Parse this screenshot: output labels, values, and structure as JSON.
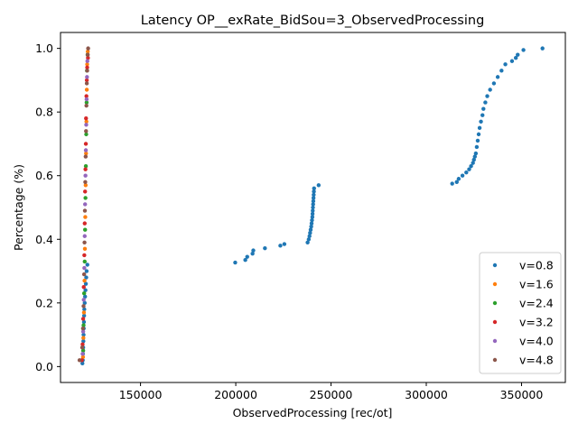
{
  "chart_data": {
    "type": "scatter",
    "title": "Latency OP__exRate_BidSou=3_ObservedProcessing",
    "xlabel": "ObservedProcessing [rec/ot]",
    "ylabel": "Percentage (%)",
    "xlim": [
      108000,
      373000
    ],
    "ylim": [
      -0.05,
      1.05
    ],
    "xticks": [
      150000,
      200000,
      250000,
      300000,
      350000
    ],
    "xtick_labels": [
      "150000",
      "200000",
      "250000",
      "300000",
      "350000"
    ],
    "yticks": [
      0.0,
      0.2,
      0.4,
      0.6,
      0.8,
      1.0
    ],
    "ytick_labels": [
      "0.0",
      "0.2",
      "0.4",
      "0.6",
      "0.8",
      "1.0"
    ],
    "grid": false,
    "legend_position": "lower-right",
    "series": [
      {
        "name": "v=0.8",
        "color": "#1f77b4",
        "points": [
          [
            119500,
            0.01
          ],
          [
            119700,
            0.02
          ],
          [
            119800,
            0.04
          ],
          [
            119900,
            0.06
          ],
          [
            120000,
            0.08
          ],
          [
            120100,
            0.1
          ],
          [
            120200,
            0.12
          ],
          [
            120300,
            0.14
          ],
          [
            120400,
            0.16
          ],
          [
            120500,
            0.18
          ],
          [
            120700,
            0.2
          ],
          [
            120900,
            0.22
          ],
          [
            121100,
            0.24
          ],
          [
            121300,
            0.26
          ],
          [
            121500,
            0.28
          ],
          [
            121700,
            0.3
          ],
          [
            122100,
            0.32
          ],
          [
            199700,
            0.327
          ],
          [
            205000,
            0.335
          ],
          [
            206000,
            0.345
          ],
          [
            208800,
            0.355
          ],
          [
            209200,
            0.365
          ],
          [
            215300,
            0.372
          ],
          [
            223400,
            0.38
          ],
          [
            225500,
            0.385
          ],
          [
            237700,
            0.39
          ],
          [
            238300,
            0.4
          ],
          [
            238700,
            0.41
          ],
          [
            239000,
            0.42
          ],
          [
            239300,
            0.43
          ],
          [
            239600,
            0.44
          ],
          [
            239800,
            0.45
          ],
          [
            240000,
            0.46
          ],
          [
            240200,
            0.47
          ],
          [
            240300,
            0.48
          ],
          [
            240400,
            0.49
          ],
          [
            240500,
            0.5
          ],
          [
            240600,
            0.51
          ],
          [
            240700,
            0.52
          ],
          [
            240800,
            0.53
          ],
          [
            240900,
            0.54
          ],
          [
            241000,
            0.55
          ],
          [
            241100,
            0.56
          ],
          [
            243500,
            0.57
          ],
          [
            313600,
            0.575
          ],
          [
            316000,
            0.58
          ],
          [
            317000,
            0.59
          ],
          [
            319000,
            0.6
          ],
          [
            321000,
            0.61
          ],
          [
            322500,
            0.62
          ],
          [
            323500,
            0.63
          ],
          [
            324500,
            0.64
          ],
          [
            325000,
            0.65
          ],
          [
            325500,
            0.66
          ],
          [
            326000,
            0.67
          ],
          [
            326500,
            0.69
          ],
          [
            327000,
            0.71
          ],
          [
            327500,
            0.73
          ],
          [
            328000,
            0.75
          ],
          [
            328700,
            0.77
          ],
          [
            329500,
            0.79
          ],
          [
            330000,
            0.81
          ],
          [
            331000,
            0.83
          ],
          [
            332000,
            0.85
          ],
          [
            333500,
            0.87
          ],
          [
            335500,
            0.89
          ],
          [
            337500,
            0.91
          ],
          [
            339500,
            0.93
          ],
          [
            341500,
            0.95
          ],
          [
            345000,
            0.96
          ],
          [
            347000,
            0.97
          ],
          [
            348000,
            0.98
          ],
          [
            351000,
            0.995
          ],
          [
            361000,
            1.0
          ]
        ]
      },
      {
        "name": "v=1.6",
        "color": "#ff7f0e",
        "points": [
          [
            119800,
            0.03
          ],
          [
            120000,
            0.09
          ],
          [
            120300,
            0.17
          ],
          [
            120600,
            0.27
          ],
          [
            120800,
            0.37
          ],
          [
            121000,
            0.47
          ],
          [
            121200,
            0.57
          ],
          [
            121400,
            0.67
          ],
          [
            121600,
            0.77
          ],
          [
            121800,
            0.87
          ],
          [
            122000,
            0.95
          ],
          [
            122300,
            0.99
          ]
        ]
      },
      {
        "name": "v=2.4",
        "color": "#2ca02c",
        "points": [
          [
            119900,
            0.05
          ],
          [
            120100,
            0.13
          ],
          [
            120400,
            0.23
          ],
          [
            120700,
            0.33
          ],
          [
            120900,
            0.43
          ],
          [
            121100,
            0.53
          ],
          [
            121300,
            0.63
          ],
          [
            121500,
            0.73
          ],
          [
            121700,
            0.83
          ],
          [
            121900,
            0.93
          ],
          [
            122200,
            0.98
          ]
        ]
      },
      {
        "name": "v=3.2",
        "color": "#d62728",
        "points": [
          [
            119200,
            0.02
          ],
          [
            119600,
            0.07
          ],
          [
            119900,
            0.15
          ],
          [
            120200,
            0.25
          ],
          [
            120500,
            0.35
          ],
          [
            120700,
            0.45
          ],
          [
            120900,
            0.55
          ],
          [
            121100,
            0.62
          ],
          [
            121300,
            0.7
          ],
          [
            121400,
            0.78
          ],
          [
            121600,
            0.85
          ],
          [
            121800,
            0.9
          ],
          [
            122000,
            0.94
          ],
          [
            122400,
            0.97
          ]
        ]
      },
      {
        "name": "v=4.0",
        "color": "#9467bd",
        "points": [
          [
            119600,
            0.04
          ],
          [
            119900,
            0.11
          ],
          [
            120200,
            0.21
          ],
          [
            120500,
            0.31
          ],
          [
            120700,
            0.41
          ],
          [
            120900,
            0.51
          ],
          [
            121100,
            0.6
          ],
          [
            121300,
            0.68
          ],
          [
            121500,
            0.76
          ],
          [
            121700,
            0.84
          ],
          [
            121900,
            0.91
          ],
          [
            122100,
            0.96
          ]
        ]
      },
      {
        "name": "v=4.8",
        "color": "#8c564b",
        "points": [
          [
            118000,
            0.02
          ],
          [
            119400,
            0.06
          ],
          [
            119800,
            0.12
          ],
          [
            120100,
            0.19
          ],
          [
            120400,
            0.29
          ],
          [
            120600,
            0.39
          ],
          [
            120800,
            0.49
          ],
          [
            121000,
            0.58
          ],
          [
            121200,
            0.66
          ],
          [
            121400,
            0.74
          ],
          [
            121600,
            0.82
          ],
          [
            121800,
            0.89
          ],
          [
            122000,
            0.93
          ],
          [
            122300,
            0.98
          ],
          [
            122500,
            1.0
          ]
        ]
      }
    ]
  }
}
